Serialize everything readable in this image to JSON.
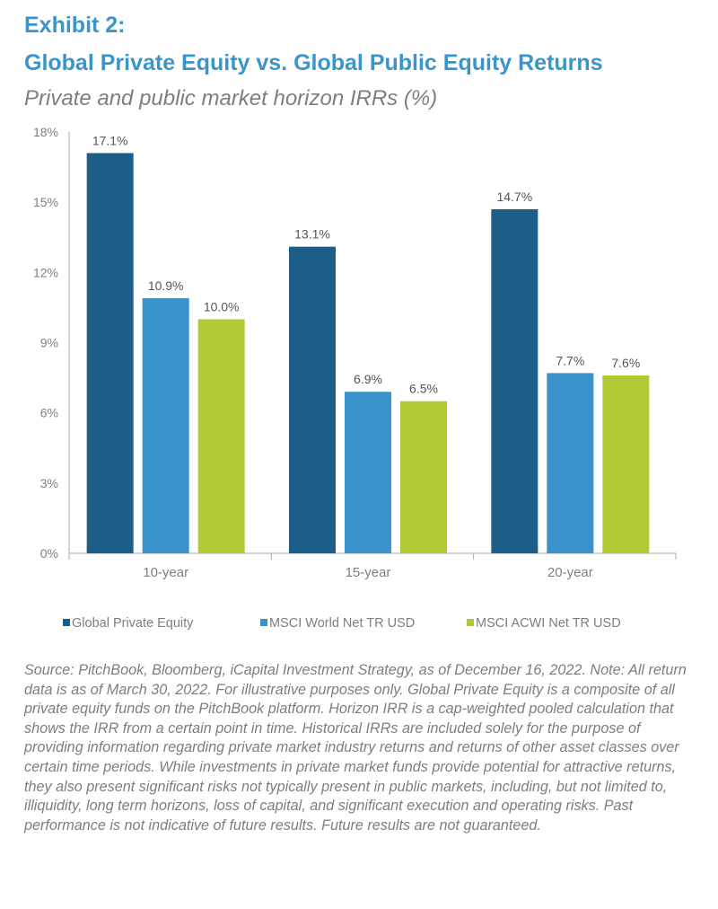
{
  "header": {
    "exhibit": "Exhibit 2:",
    "title": "Global Private Equity vs. Global Public Equity Returns",
    "subtitle": "Private and public market horizon IRRs (%)"
  },
  "chart_data": {
    "type": "bar",
    "categories": [
      "10-year",
      "15-year",
      "20-year"
    ],
    "series": [
      {
        "name": "Global Private Equity",
        "values": [
          17.1,
          13.1,
          14.7
        ],
        "labels": [
          "17.1%",
          "13.1%",
          "14.7%"
        ],
        "color": "#1c5e87"
      },
      {
        "name": "MSCI World Net TR USD",
        "values": [
          10.9,
          6.9,
          7.7
        ],
        "labels": [
          "10.9%",
          "6.9%",
          "7.7%"
        ],
        "color": "#3a93c8"
      },
      {
        "name": "MSCI ACWI Net TR USD",
        "values": [
          10.0,
          6.5,
          7.6
        ],
        "labels": [
          "10.0%",
          "6.5%",
          "7.6%"
        ],
        "color": "#b2c935"
      }
    ],
    "ylim": [
      0,
      18
    ],
    "yticks": [
      "0%",
      "3%",
      "6%",
      "9%",
      "12%",
      "15%",
      "18%"
    ],
    "grid": false,
    "legend": "bottom"
  },
  "footnote": "Source: PitchBook, Bloomberg, iCapital Investment Strategy, as of December 16, 2022. Note: All return data is as of March 30, 2022. For illustrative purposes only. Global Private Equity is a composite of all private equity funds on the PitchBook platform. Horizon IRR is a cap-weighted pooled calculation that shows the IRR from a certain point in time. Historical IRRs are included solely for the purpose of providing information regarding private market industry returns and returns of other asset classes over certain time periods. While investments in private market funds provide potential for attractive returns, they also present significant risks not typically present in public markets, including, but not limited to, illiquidity, long term horizons, loss of capital, and significant execution and operating risks. Past performance is not indicative of future results. Future results are not guaranteed."
}
